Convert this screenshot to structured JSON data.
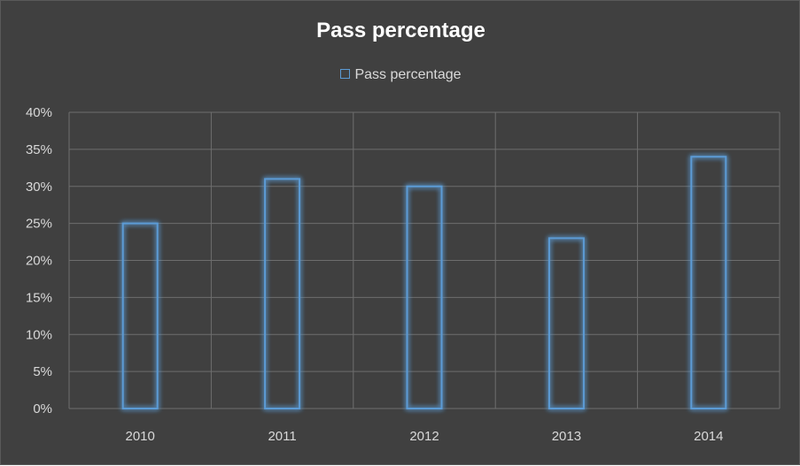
{
  "chart_data": {
    "type": "bar",
    "title": "Pass percentage",
    "categories": [
      "2010",
      "2011",
      "2012",
      "2013",
      "2014"
    ],
    "series": [
      {
        "name": "Pass percentage",
        "values": [
          25,
          31,
          30,
          23,
          34
        ]
      }
    ],
    "y_ticks": [
      "0%",
      "5%",
      "10%",
      "15%",
      "20%",
      "25%",
      "30%",
      "35%",
      "40%"
    ],
    "ylim": [
      0,
      40
    ],
    "grid": true,
    "legend_position": "top",
    "colors": {
      "background": "#404040",
      "bar_outline": "#5b9bd5",
      "gridline": "#6e6e6e",
      "text": "#d9d9d9"
    }
  }
}
